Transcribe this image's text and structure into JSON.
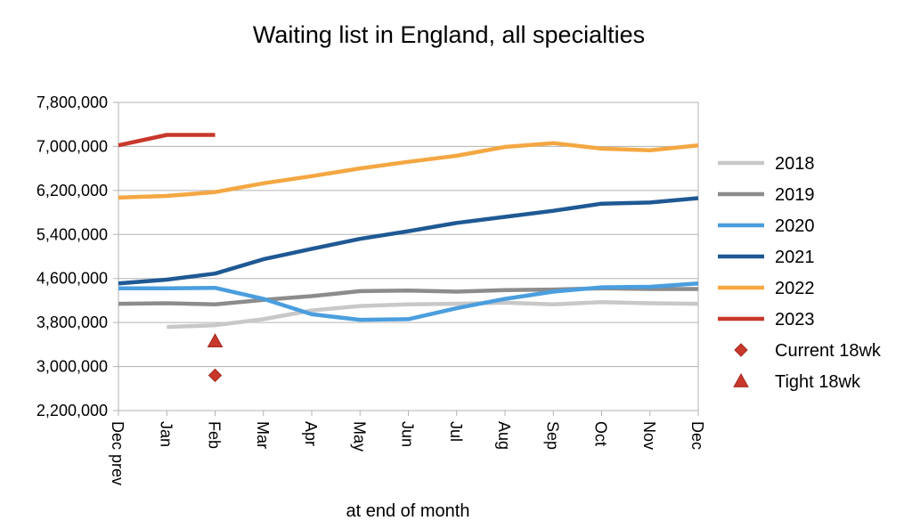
{
  "chart_data": {
    "type": "line",
    "title": "Waiting list in England, all specialties",
    "xlabel": "at end of month",
    "ylabel": "",
    "categories": [
      "Dec prev",
      "Jan",
      "Feb",
      "Mar",
      "Apr",
      "May",
      "Jun",
      "Jul",
      "Aug",
      "Sep",
      "Oct",
      "Nov",
      "Dec"
    ],
    "ylim": [
      2200000,
      7800000
    ],
    "yticks": [
      2200000,
      3000000,
      3800000,
      4600000,
      5400000,
      6200000,
      7000000,
      7800000
    ],
    "ytick_labels": [
      "2,200,000",
      "3,000,000",
      "3,800,000",
      "4,600,000",
      "5,400,000",
      "6,200,000",
      "7,000,000",
      "7,800,000"
    ],
    "grid": true,
    "legend_position": "right",
    "series": [
      {
        "name": "2018",
        "color": "#c8c8c8",
        "values": [
          null,
          3720000,
          3750000,
          3860000,
          4020000,
          4100000,
          4130000,
          4140000,
          4160000,
          4130000,
          4170000,
          4150000,
          4140000
        ]
      },
      {
        "name": "2019",
        "color": "#8c8c8c",
        "values": [
          4140000,
          4150000,
          4130000,
          4210000,
          4280000,
          4370000,
          4380000,
          4360000,
          4390000,
          4400000,
          4420000,
          4410000,
          4410000
        ]
      },
      {
        "name": "2020",
        "color": "#4a9ede",
        "values": [
          4420000,
          4420000,
          4430000,
          4230000,
          3950000,
          3850000,
          3860000,
          4060000,
          4230000,
          4360000,
          4440000,
          4450000,
          4510000
        ]
      },
      {
        "name": "2021",
        "color": "#1f5994",
        "values": [
          4510000,
          4580000,
          4690000,
          4950000,
          5140000,
          5320000,
          5460000,
          5610000,
          5720000,
          5830000,
          5960000,
          5980000,
          6060000
        ]
      },
      {
        "name": "2022",
        "color": "#f4a742",
        "values": [
          6070000,
          6100000,
          6170000,
          6330000,
          6460000,
          6600000,
          6720000,
          6830000,
          6990000,
          7060000,
          6960000,
          6930000,
          7020000
        ]
      },
      {
        "name": "2023",
        "color": "#c8382b",
        "values": [
          7020000,
          7210000,
          7210000,
          null,
          null,
          null,
          null,
          null,
          null,
          null,
          null,
          null,
          null
        ]
      }
    ],
    "markers": [
      {
        "name": "Current 18wk",
        "shape": "diamond",
        "color": "#c8382b",
        "x": "Feb",
        "y": 2840000
      },
      {
        "name": "Tight 18wk",
        "shape": "triangle",
        "color": "#c8382b",
        "x": "Feb",
        "y": 3460000
      }
    ]
  }
}
